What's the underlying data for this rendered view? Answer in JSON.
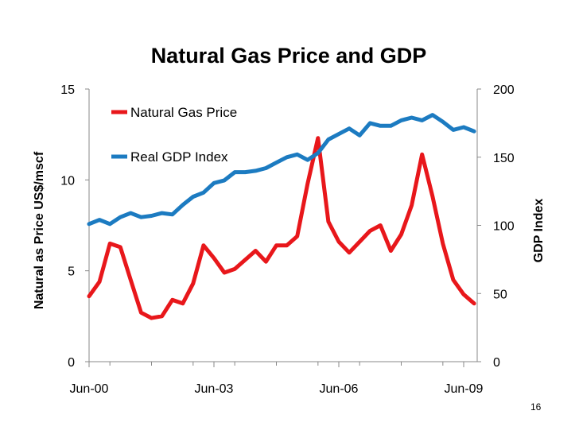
{
  "slide": {
    "number": "16"
  },
  "chart_data": {
    "type": "line",
    "title": "Natural Gas Price and GDP",
    "ylabel_left": "Natural as Price US$/mscf",
    "ylabel_right": "GDP Index",
    "xlabel": "",
    "x_tick_labels": [
      "Jun-00",
      "Jun-03",
      "Jun-06",
      "Jun-09"
    ],
    "y_left_ticks": [
      "0",
      "5",
      "10",
      "15"
    ],
    "y_right_ticks": [
      "0",
      "50",
      "100",
      "150",
      "200"
    ],
    "ylim_left": [
      0,
      15
    ],
    "ylim_right": [
      0,
      200
    ],
    "x_start_year": 2000.5,
    "x_step_years": 0.25,
    "legend_position": "top-left",
    "grid": false,
    "series": [
      {
        "name": "Natural Gas Price",
        "axis": "left",
        "color": "#e8171b",
        "values": [
          3.6,
          4.4,
          6.5,
          6.3,
          4.5,
          2.7,
          2.4,
          2.5,
          3.4,
          3.2,
          4.3,
          6.4,
          5.7,
          4.9,
          5.1,
          5.6,
          6.1,
          5.5,
          6.4,
          6.4,
          6.9,
          9.8,
          12.3,
          7.7,
          6.6,
          6.0,
          6.6,
          7.2,
          7.5,
          6.1,
          7.0,
          8.6,
          11.4,
          9.1,
          6.5,
          4.5,
          3.7,
          3.2
        ]
      },
      {
        "name": "Real GDP Index",
        "axis": "right",
        "color": "#1c7bc1",
        "values": [
          101,
          104,
          101,
          106,
          109,
          106,
          107,
          109,
          108,
          115,
          121,
          124,
          131,
          133,
          139,
          139,
          140,
          142,
          146,
          150,
          152,
          148,
          153,
          163,
          167,
          171,
          166,
          175,
          173,
          173,
          177,
          179,
          177,
          181,
          176,
          170,
          172,
          169
        ]
      }
    ]
  }
}
